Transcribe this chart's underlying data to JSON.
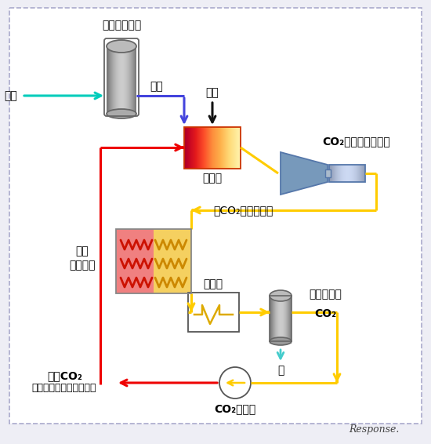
{
  "bg_color": "#eeeef5",
  "inner_bg": "#ffffff",
  "border_color": "#aaaacc",
  "title_oxygen_device": "酸素製造装置",
  "label_air": "空気",
  "label_oxygen": "酸素",
  "label_fuel": "燃料",
  "label_combustor": "燃焼器",
  "label_turbine_line1": "CO₂タービン発電機",
  "label_co2_steam": "（CO₂，水蒸気）",
  "label_heat_exchanger_line1": "再生",
  "label_heat_exchanger_line2": "熱交換器",
  "label_cooler": "冷却器",
  "label_moisture_separator": "湿分分離器",
  "label_co2": "CO₂",
  "label_water": "水",
  "label_pump": "CO₂ポンプ",
  "label_high_pressure_line1": "高圧CO₂",
  "label_high_pressure_line2": "（貯留、石油増進回収）",
  "color_air": "#00ccbb",
  "color_oxygen": "#4444dd",
  "color_fuel": "#111111",
  "color_hot": "#ee0000",
  "color_yellow": "#ffcc00",
  "color_water": "#44cccc",
  "font_size": 9,
  "font_size_label": 10,
  "font_size_title": 10
}
